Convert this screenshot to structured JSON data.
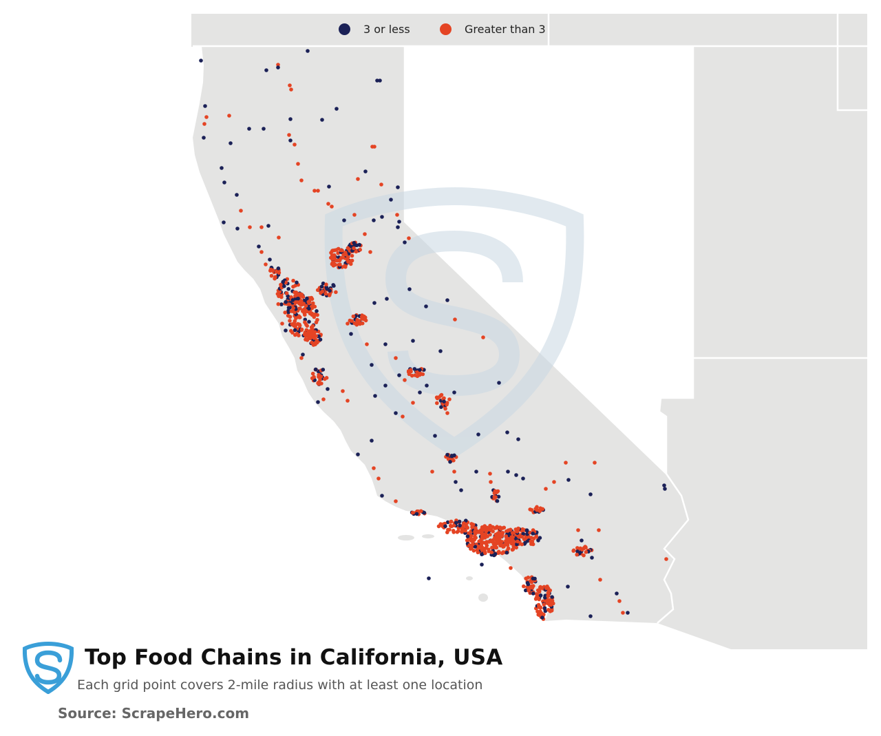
{
  "legend": {
    "items": [
      {
        "label": "3 or less",
        "color": "#1b2157"
      },
      {
        "label": "Greater than 3",
        "color": "#e44424"
      }
    ]
  },
  "title": "Top Food Chains in California, USA",
  "subtitle": "Each grid point covers 2-mile radius with at least one location",
  "source": "Source: ScrapeHero.com",
  "colors": {
    "land": "#e4e4e3",
    "state_border": "#ffffff",
    "background": "#ffffff",
    "watermark": "#c9d8e3",
    "logo": "#3a9fd8"
  },
  "icons": {
    "logo": "scrapehero-shield-icon",
    "watermark": "scrapehero-shield-watermark-icon"
  }
}
